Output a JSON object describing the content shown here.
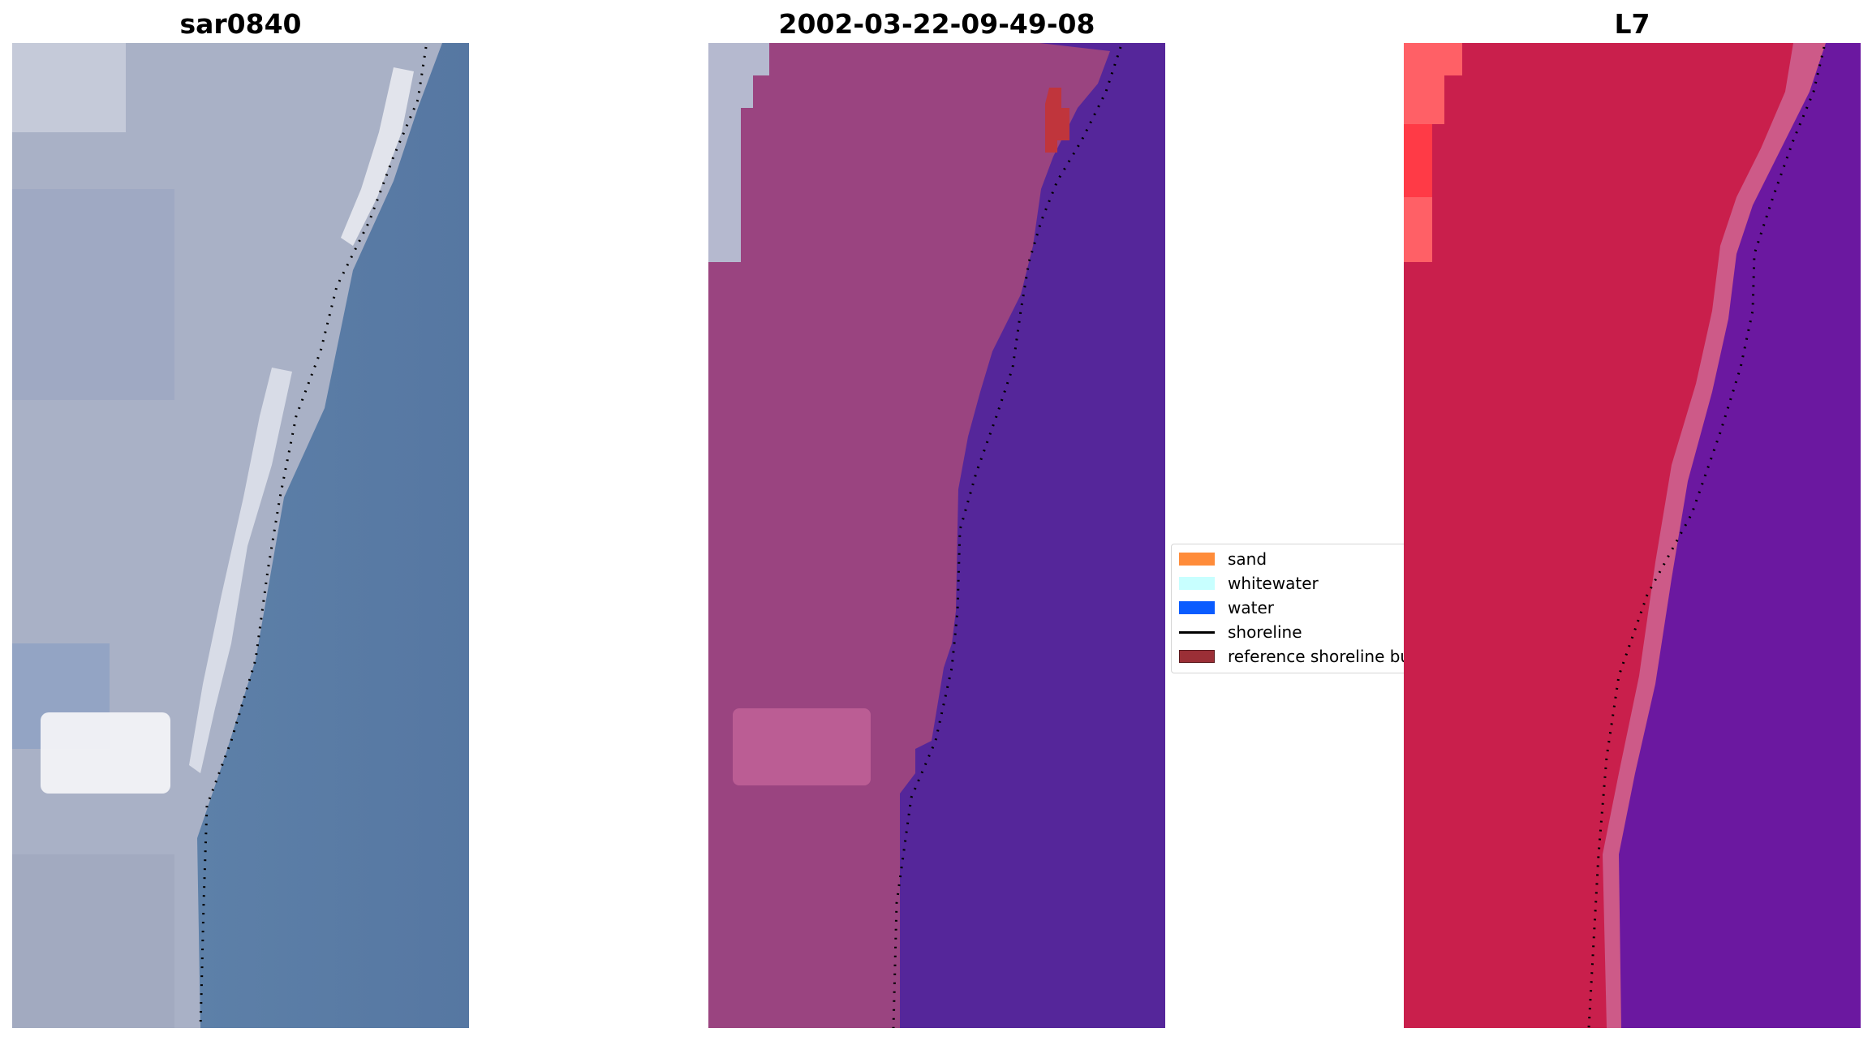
{
  "titles": {
    "left": "sar0840",
    "middle": "2002-03-22-09-49-08",
    "right": "L7"
  },
  "legend": {
    "items": [
      {
        "label": "sand",
        "color": "#ff8c3a"
      },
      {
        "label": "whitewater",
        "color": "#c8ffff"
      },
      {
        "label": "water",
        "color": "#0a5cff"
      },
      {
        "label": "shoreline",
        "color": "#000000"
      },
      {
        "label": "reference shoreline buffer",
        "color": "#9b2f36"
      }
    ]
  },
  "colors": {
    "rgb_land": "#aab2c8",
    "rgb_water": "#5a7ea8",
    "class_land": "#9a4480",
    "class_water": "#55269a",
    "class_white": "#b8bcd0",
    "class_buffer": "#c0353c",
    "l7_land": "#c91f4c",
    "l7_water": "#6a1a9e",
    "shoreline": "#000000"
  }
}
